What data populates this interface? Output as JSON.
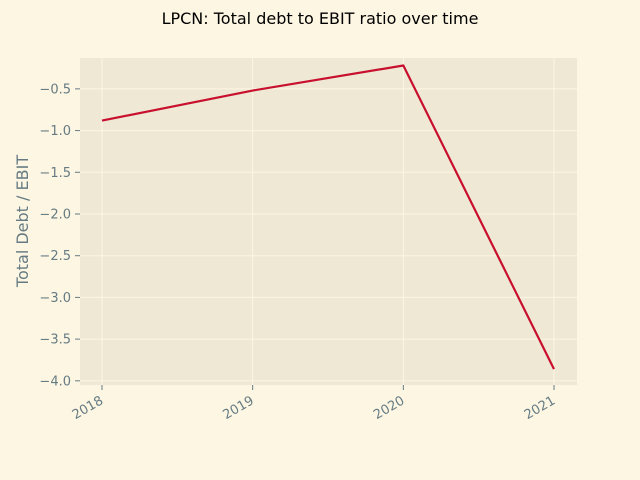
{
  "chart_data": {
    "type": "line",
    "title": "LPCN: Total debt to EBIT ratio over time",
    "xlabel": "",
    "ylabel": "Total Debt / EBIT",
    "x": [
      "2018",
      "2019",
      "2020",
      "2021"
    ],
    "series": [
      {
        "values": [
          -0.88,
          -0.52,
          -0.22,
          -3.86
        ],
        "color": "#c8102e"
      }
    ],
    "ylim": [
      -4.05,
      -0.13
    ],
    "yticks": [
      -4.0,
      -3.5,
      -3.0,
      -2.5,
      -2.0,
      -1.5,
      -1.0,
      -0.5
    ],
    "ytick_labels": [
      "−4.0",
      "−3.5",
      "−3.0",
      "−2.5",
      "−2.0",
      "−1.5",
      "−1.0",
      "−0.5"
    ],
    "grid": true,
    "legend": "none"
  },
  "colors": {
    "background": "#fdf6e3",
    "plot_background": "#eee8d5",
    "grid": "#fdf6e3",
    "tick_text": "#657b83",
    "line": "#c8102e"
  }
}
